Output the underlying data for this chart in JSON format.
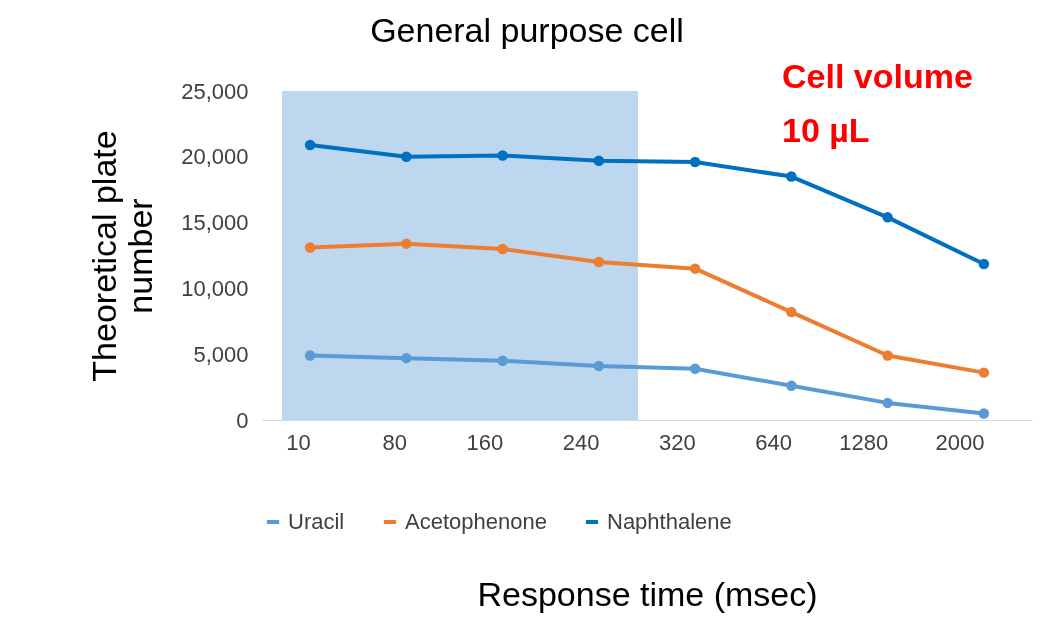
{
  "chart_data": {
    "type": "line",
    "title": "General purpose cell",
    "xlabel": "Response time (msec)",
    "ylabel": "Theoretical plate number",
    "categories": [
      "10",
      "80",
      "160",
      "240",
      "320",
      "640",
      "1280",
      "2000"
    ],
    "series": [
      {
        "name": "Uracil",
        "color": "#5b9bd5",
        "values": [
          4900,
          4700,
          4500,
          4100,
          3900,
          2600,
          1300,
          500
        ]
      },
      {
        "name": "Acetophenone",
        "color": "#ed7d31",
        "values": [
          13100,
          13400,
          13000,
          12000,
          11500,
          8200,
          4900,
          3600
        ]
      },
      {
        "name": "Naphthalene",
        "color": "#0070c0",
        "values": [
          20900,
          20000,
          20100,
          19700,
          19600,
          18500,
          15400,
          11850
        ]
      }
    ],
    "ylim": [
      0,
      25000
    ],
    "yticks": [
      {
        "value": 0,
        "label": "0"
      },
      {
        "value": 5000,
        "label": "5,000"
      },
      {
        "value": 10000,
        "label": "10,000"
      },
      {
        "value": 15000,
        "label": "15,000"
      },
      {
        "value": 20000,
        "label": "20,000"
      },
      {
        "value": 25000,
        "label": "25,000"
      }
    ],
    "bands": [
      {
        "axis": "x",
        "from": "10",
        "to": "240",
        "color": "#bdd7ee"
      }
    ],
    "annotations": [
      "Cell volume",
      "10 µL"
    ],
    "grid": false,
    "legend": "bottom",
    "marker": "circle"
  }
}
